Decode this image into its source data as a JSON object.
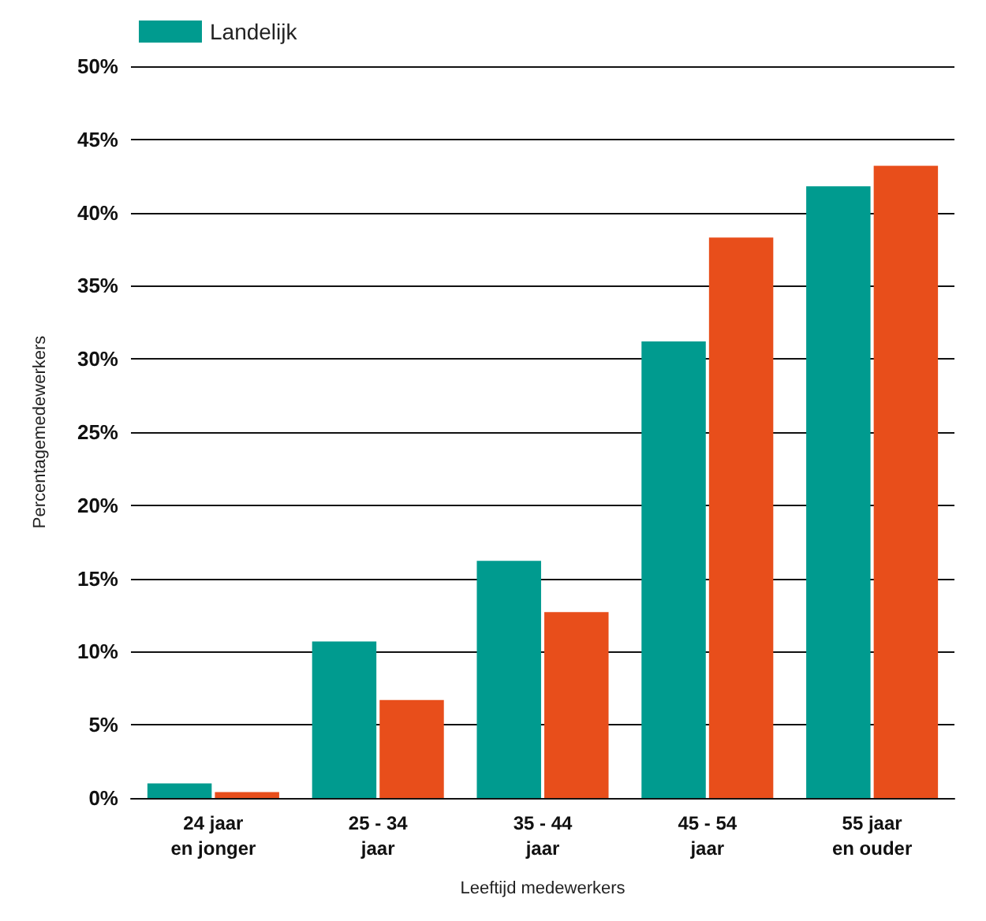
{
  "chart_data": {
    "type": "bar",
    "xlabel": "Leeftijd medewerkers",
    "ylabel": "Percentagemedewerkers",
    "categories": [
      "24 jaar\nen jonger",
      "25 - 34\njaar",
      "35 - 44\njaar",
      "45 - 54\njaar",
      "55 jaar\nen ouder"
    ],
    "series": [
      {
        "name": "Landelijk",
        "color": "#009b8f",
        "values": [
          1.0,
          10.7,
          16.2,
          31.2,
          41.8
        ]
      },
      {
        "color": "#e84e1b",
        "values": [
          0.4,
          6.7,
          12.7,
          38.3,
          43.2
        ]
      }
    ],
    "ylim": [
      0,
      50
    ],
    "yticks": [
      {
        "value": 0,
        "label": "0%"
      },
      {
        "value": 5,
        "label": "5%"
      },
      {
        "value": 10,
        "label": "10%"
      },
      {
        "value": 15,
        "label": "15%"
      },
      {
        "value": 20,
        "label": "20%"
      },
      {
        "value": 25,
        "label": "25%"
      },
      {
        "value": 30,
        "label": "30%"
      },
      {
        "value": 35,
        "label": "35%"
      },
      {
        "value": 40,
        "label": "40%"
      },
      {
        "value": 45,
        "label": "45%"
      },
      {
        "value": 50,
        "label": "50%"
      }
    ],
    "grid": "y",
    "legend": "top left"
  }
}
